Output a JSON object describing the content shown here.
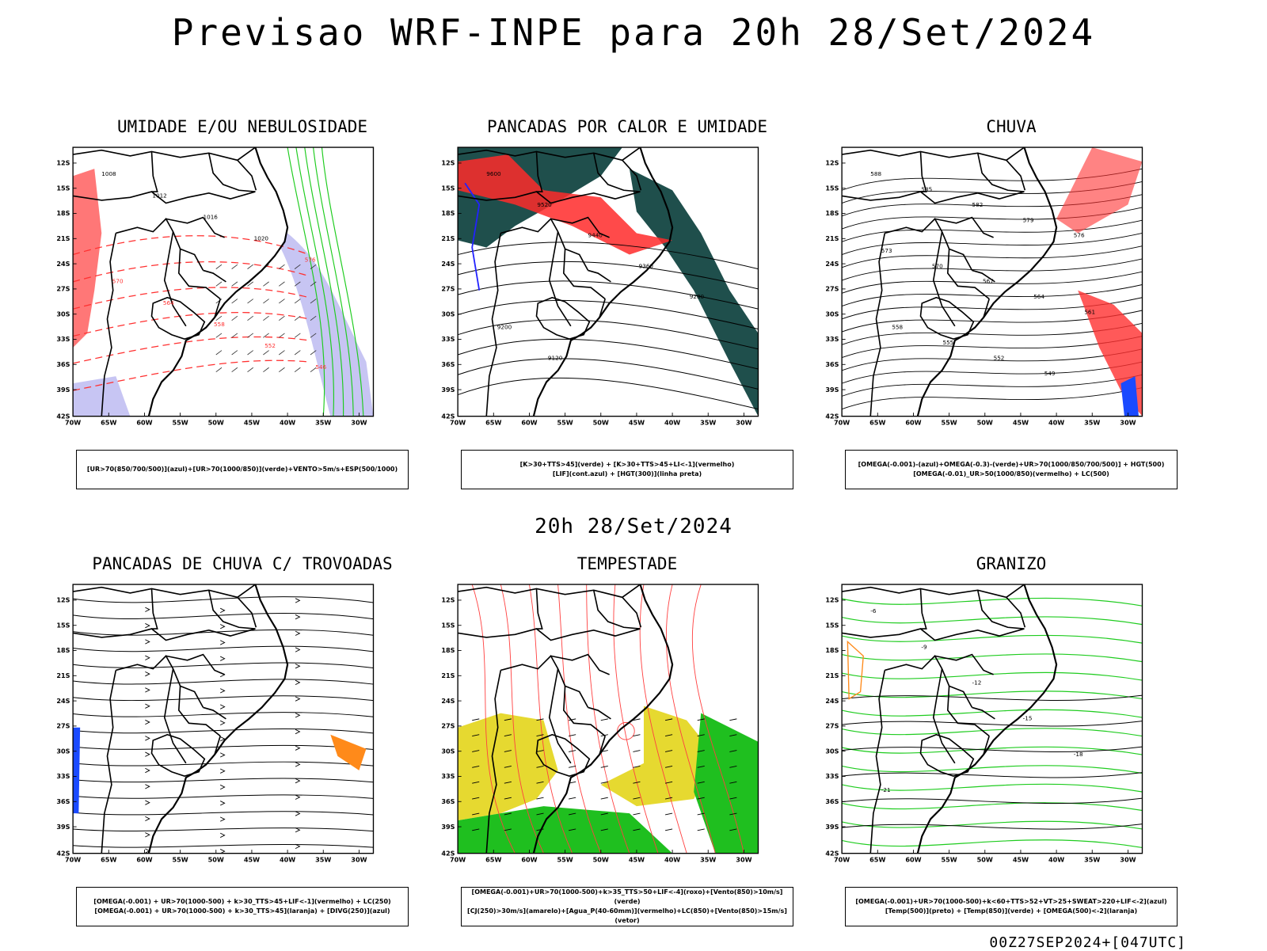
{
  "header": {
    "title": "Previsao WRF-INPE  para 20h 28/Set/2024",
    "mid_date": "20h 28/Set/2024",
    "footer_stamp": "00Z27SEP2024+[047UTC]"
  },
  "axes": {
    "lat_labels": [
      "12S",
      "15S",
      "18S",
      "21S",
      "24S",
      "27S",
      "30S",
      "33S",
      "36S",
      "39S",
      "42S"
    ],
    "lon_labels": [
      "70W",
      "65W",
      "60W",
      "55W",
      "50W",
      "45W",
      "40W",
      "35W",
      "30W"
    ]
  },
  "panels": [
    {
      "id": "umidade",
      "title": "UMIDADE E/OU NEBULOSIDADE",
      "legend_lines": [
        "[UR>70(850/700/500)](azul)+[UR>70(1000/850)](verde)+VENTO>5m/s+ESP(500/1000)"
      ],
      "contour_labels": [
        "1008",
        "1012",
        "1016",
        "1020",
        "576",
        "570",
        "564",
        "558",
        "552",
        "546"
      ]
    },
    {
      "id": "pancadas_calor",
      "title": "PANCADAS POR CALOR E UMIDADE",
      "legend_lines": [
        "[K>30+TTS>45](verde) + [K>30+TTS>45+LI<-1](vermelho)",
        "[LIF](cont.azul) + [HGT(300)](linha preta)"
      ],
      "contour_labels": [
        "9600",
        "9520",
        "9440",
        "9360",
        "9280",
        "9200",
        "9120"
      ]
    },
    {
      "id": "chuva",
      "title": "CHUVA",
      "legend_lines": [
        "[OMEGA(-0.001)-(azul)+OMEGA(-0.3)-(verde)+UR>70(1000/850/700/500)] + HGT(500)",
        "[OMEGA(-0.01)_UR>50(1000/850)(vermelho) + LC(500)"
      ],
      "contour_labels": [
        "588",
        "585",
        "582",
        "579",
        "576",
        "573",
        "570",
        "567",
        "564",
        "561",
        "558",
        "555",
        "552",
        "549"
      ]
    },
    {
      "id": "trovoadas",
      "title": "PANCADAS DE CHUVA C/ TROVOADAS",
      "legend_lines": [
        "[OMEGA(-0.001) + UR>70(1000-500) + k>30_TTS>45+LIF<-1](vermelho) + LC(250)",
        "[OMEGA(-0.001) + UR>70(1000-500) + k>30_TTS>45](laranja) + [DIVG(250)](azul)"
      ],
      "contour_labels": []
    },
    {
      "id": "tempestade",
      "title": "TEMPESTADE",
      "legend_lines": [
        "[OMEGA(-0.001)+UR>70(1000-500)+k>35_TTS>50+LIF<-4](roxo)+[Vento(850)>10m/s](verde)",
        "[CJ(250)>30m/s](amarelo)+[Agua_P(40-60mm)](vermelho)+LC(850)+[Vento(850)>15m/s](vetor)"
      ],
      "contour_labels": []
    },
    {
      "id": "granizo",
      "title": "GRANIZO",
      "legend_lines": [
        "[OMEGA(-0.001)+UR>70(1000-500)+k<60+TTS>52+VT>25+SWEAT>220+LIF<-2](azul)",
        "[Temp(500)](preto) + [Temp(850)](verde) + [OMEGA(500)<-2](laranja)"
      ],
      "contour_labels": [
        "-6",
        "-9",
        "-12",
        "-15",
        "-18",
        "-21"
      ]
    }
  ]
}
